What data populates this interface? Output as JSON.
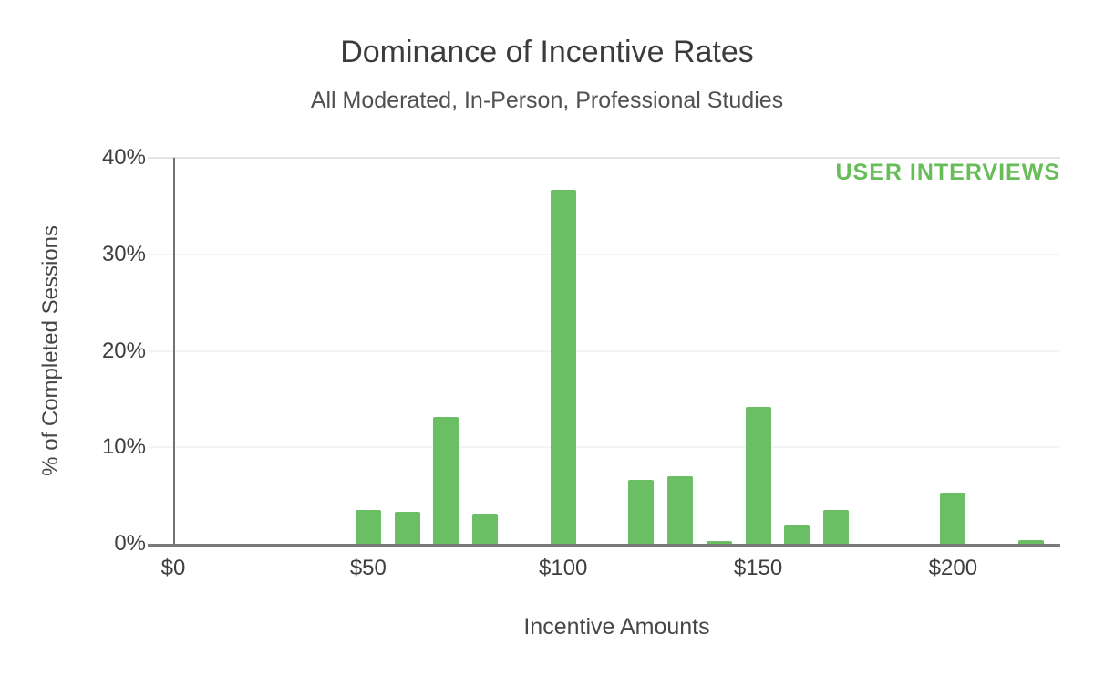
{
  "header": {
    "title": "Dominance of Incentive Rates",
    "subtitle": "All Moderated, In-Person, Professional Studies"
  },
  "branding": {
    "watermark_text": "USER INTERVIEWS",
    "watermark_color": "#67bd58"
  },
  "chart_data": {
    "type": "bar",
    "title": "Dominance of Incentive Rates",
    "subtitle": "All Moderated, In-Person, Professional Studies",
    "xlabel": "Incentive Amounts",
    "ylabel": "% of Completed Sessions",
    "xlim": [
      0,
      227.5
    ],
    "ylim": [
      0,
      40
    ],
    "grid": "horizontal",
    "legend": "none",
    "bar_color": "#6abe63",
    "x_ticks": [
      {
        "value": 0,
        "label": "$0"
      },
      {
        "value": 50,
        "label": "$50"
      },
      {
        "value": 100,
        "label": "$100"
      },
      {
        "value": 150,
        "label": "$150"
      },
      {
        "value": 200,
        "label": "$200"
      }
    ],
    "y_ticks": [
      {
        "value": 0,
        "label": "0%"
      },
      {
        "value": 10,
        "label": "10%"
      },
      {
        "value": 20,
        "label": "20%"
      },
      {
        "value": 30,
        "label": "30%"
      },
      {
        "value": 40,
        "label": "40%"
      }
    ],
    "points": [
      {
        "x": 50,
        "y": 3.5
      },
      {
        "x": 60,
        "y": 3.3
      },
      {
        "x": 70,
        "y": 13.1
      },
      {
        "x": 80,
        "y": 3.1
      },
      {
        "x": 100,
        "y": 36.7
      },
      {
        "x": 120,
        "y": 6.6
      },
      {
        "x": 130,
        "y": 7.0
      },
      {
        "x": 140,
        "y": 0.25
      },
      {
        "x": 150,
        "y": 14.2
      },
      {
        "x": 160,
        "y": 2.0
      },
      {
        "x": 170,
        "y": 3.5
      },
      {
        "x": 200,
        "y": 5.3
      },
      {
        "x": 220,
        "y": 0.35
      }
    ]
  },
  "colors": {
    "background": "#ffffff",
    "axis_line": "#7a7a7a",
    "gridline_top": "#e3e3e3",
    "gridline": "#f4f4f4",
    "title_text": "#3c3c3c",
    "tick_text": "#3e3e3e"
  }
}
